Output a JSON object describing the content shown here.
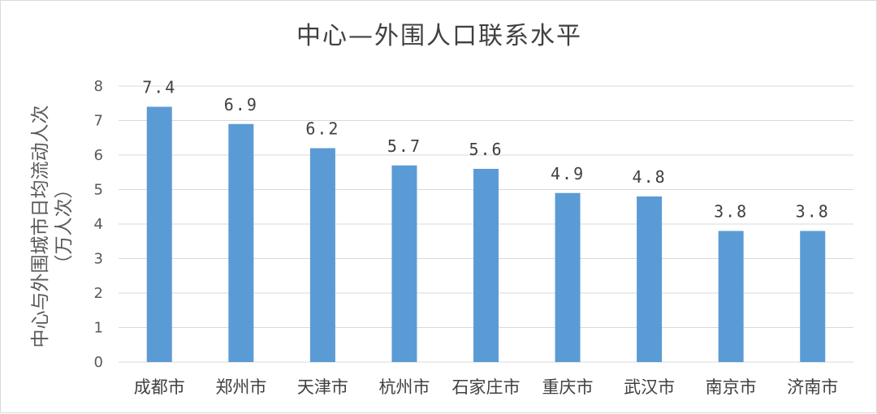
{
  "chart_data": {
    "type": "bar",
    "title": "中心—外围人口联系水平",
    "ylabel_lines": [
      "中心与外围城市日均流动人次",
      "（万人次）"
    ],
    "xlabel": "",
    "categories": [
      "成都市",
      "郑州市",
      "天津市",
      "杭州市",
      "石家庄市",
      "重庆市",
      "武汉市",
      "南京市",
      "济南市"
    ],
    "values": [
      7.4,
      6.9,
      6.2,
      5.7,
      5.6,
      4.9,
      4.8,
      3.8,
      3.8
    ],
    "data_labels": [
      "7.4",
      "6.9",
      "6.2",
      "5.7",
      "5.6",
      "4.9",
      "4.8",
      "3.8",
      "3.8"
    ],
    "ylim": [
      0,
      8
    ],
    "yticks": [
      "0",
      "1",
      "2",
      "3",
      "4",
      "5",
      "6",
      "7",
      "8"
    ],
    "grid": true,
    "legend": "none",
    "colors": {
      "bar": "#5b9bd5",
      "grid": "#d9d9d9",
      "text": "#404040"
    }
  }
}
